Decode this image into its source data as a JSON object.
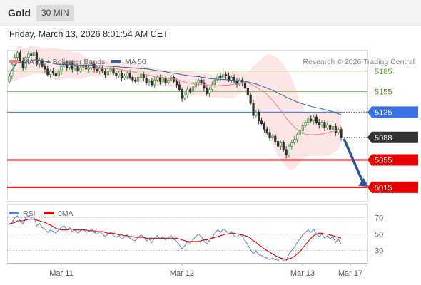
{
  "header": {
    "symbol": "Gold",
    "timeframe": "30 MIN"
  },
  "timestamp": "Friday, March 13, 2026 8:01:54 AM CET",
  "copyright": "Research © 2026 Trading Central",
  "colors": {
    "up": "#3a8a3a",
    "down": "#2e2e2e",
    "ma20": "#f08080",
    "bb_fill": "#fbdcdc",
    "ma50": "#3b5f9e",
    "pivot": "#3b73e6",
    "support": "#e60000",
    "resistance": "#8cc060",
    "current": "#333333",
    "rsi": "#5b84d6",
    "rsi_ma": "#e60000",
    "arrow": "#2a5698"
  },
  "chart_data": [
    {
      "type": "candlestick",
      "title": "",
      "legend": {
        "position": "top-left",
        "entries": [
          "MA 20 + Bollinger Bands",
          "MA 50"
        ]
      },
      "x_labels": [
        "Mar 11",
        "Mar 12",
        "Mar 13",
        "Mar 17"
      ],
      "ylim": [
        4995,
        5215
      ],
      "levels": [
        {
          "value": 5185,
          "label": "5185",
          "kind": "resistance"
        },
        {
          "value": 5155,
          "label": "5155",
          "kind": "resistance"
        },
        {
          "value": 5125,
          "label": "5125",
          "kind": "pivot"
        },
        {
          "value": 5088,
          "label": "5088",
          "kind": "current"
        },
        {
          "value": 5055,
          "label": "5055",
          "kind": "support"
        },
        {
          "value": 5015,
          "label": "5015",
          "kind": "support"
        }
      ],
      "close": [
        5178,
        5195,
        5205,
        5212,
        5200,
        5190,
        5205,
        5210,
        5208,
        5212,
        5195,
        5200,
        5192,
        5188,
        5180,
        5185,
        5182,
        5178,
        5185,
        5192,
        5198,
        5190,
        5196,
        5188,
        5192,
        5185,
        5190,
        5194,
        5188,
        5190,
        5195,
        5188,
        5185,
        5190,
        5185,
        5180,
        5185,
        5188,
        5182,
        5178,
        5182,
        5175,
        5178,
        5182,
        5176,
        5172,
        5170,
        5176,
        5180,
        5175,
        5168,
        5170,
        5165,
        5172,
        5176,
        5170,
        5175,
        5168,
        5172,
        5176,
        5170,
        5165,
        5158,
        5145,
        5150,
        5158,
        5155,
        5162,
        5168,
        5172,
        5168,
        5160,
        5152,
        5158,
        5165,
        5172,
        5178,
        5175,
        5180,
        5178,
        5172,
        5176,
        5170,
        5166,
        5172,
        5168,
        5160,
        5150,
        5138,
        5120,
        5125,
        5112,
        5108,
        5100,
        5095,
        5088,
        5090,
        5082,
        5075,
        5080,
        5070,
        5062,
        5075,
        5080,
        5085,
        5092,
        5098,
        5105,
        5110,
        5115,
        5112,
        5118,
        5110,
        5106,
        5110,
        5102,
        5106,
        5100,
        5104,
        5095,
        5100,
        5088
      ],
      "open": [
        5170,
        5178,
        5195,
        5205,
        5212,
        5200,
        5190,
        5205,
        5210,
        5208,
        5212,
        5195,
        5200,
        5192,
        5188,
        5180,
        5185,
        5182,
        5178,
        5185,
        5192,
        5198,
        5190,
        5196,
        5188,
        5192,
        5185,
        5190,
        5194,
        5188,
        5190,
        5195,
        5188,
        5185,
        5190,
        5185,
        5180,
        5185,
        5188,
        5182,
        5178,
        5182,
        5175,
        5178,
        5182,
        5176,
        5172,
        5170,
        5176,
        5180,
        5175,
        5168,
        5170,
        5165,
        5172,
        5176,
        5170,
        5175,
        5168,
        5172,
        5176,
        5170,
        5165,
        5158,
        5145,
        5150,
        5158,
        5155,
        5162,
        5168,
        5172,
        5168,
        5160,
        5152,
        5158,
        5165,
        5172,
        5178,
        5175,
        5180,
        5178,
        5172,
        5176,
        5170,
        5166,
        5172,
        5168,
        5160,
        5150,
        5138,
        5120,
        5125,
        5112,
        5108,
        5100,
        5095,
        5088,
        5090,
        5082,
        5075,
        5080,
        5070,
        5062,
        5075,
        5080,
        5085,
        5092,
        5098,
        5105,
        5110,
        5115,
        5112,
        5118,
        5110,
        5106,
        5110,
        5102,
        5106,
        5100,
        5104,
        5095,
        5100
      ],
      "projection": {
        "from": 5088,
        "to": 5015
      }
    },
    {
      "type": "line",
      "title": "",
      "legend": {
        "position": "top-left",
        "entries": [
          "RSI",
          "9MA"
        ]
      },
      "ylim": [
        15,
        85
      ],
      "y_ticks": [
        70,
        50,
        30
      ],
      "rsi": [
        62,
        64,
        70,
        72,
        66,
        62,
        70,
        72,
        70,
        71,
        60,
        63,
        58,
        56,
        52,
        55,
        53,
        51,
        55,
        58,
        60,
        55,
        58,
        53,
        55,
        51,
        54,
        56,
        52,
        53,
        56,
        52,
        50,
        53,
        50,
        47,
        50,
        52,
        48,
        46,
        48,
        44,
        46,
        49,
        45,
        43,
        42,
        46,
        49,
        46,
        42,
        44,
        40,
        45,
        48,
        44,
        47,
        43,
        46,
        48,
        44,
        41,
        37,
        32,
        36,
        41,
        39,
        43,
        47,
        50,
        47,
        42,
        38,
        42,
        46,
        51,
        55,
        52,
        56,
        54,
        50,
        53,
        48,
        46,
        50,
        47,
        42,
        37,
        31,
        26,
        30,
        25,
        24,
        22,
        21,
        19,
        21,
        19,
        18,
        21,
        18,
        17,
        26,
        30,
        34,
        40,
        44,
        49,
        52,
        55,
        52,
        56,
        50,
        47,
        50,
        45,
        48,
        44,
        47,
        40,
        44,
        38
      ],
      "rsi_ma": [
        62,
        63,
        64,
        66,
        66,
        66,
        67,
        68,
        68,
        68,
        67,
        66,
        65,
        64,
        62,
        61,
        59,
        57,
        56,
        55,
        55,
        55,
        56,
        56,
        55,
        55,
        55,
        55,
        55,
        54,
        54,
        54,
        53,
        53,
        53,
        52,
        51,
        51,
        51,
        50,
        49,
        49,
        48,
        48,
        47,
        47,
        46,
        46,
        46,
        46,
        45,
        45,
        45,
        45,
        45,
        45,
        45,
        45,
        45,
        45,
        45,
        45,
        44,
        43,
        42,
        41,
        41,
        41,
        41,
        41,
        42,
        43,
        43,
        44,
        45,
        46,
        47,
        48,
        49,
        50,
        50,
        51,
        51,
        50,
        50,
        49,
        48,
        47,
        45,
        42,
        40,
        37,
        35,
        32,
        30,
        28,
        26,
        24,
        22,
        21,
        20,
        19,
        20,
        21,
        23,
        26,
        29,
        33,
        37,
        41,
        45,
        48,
        50,
        51,
        51,
        50,
        50,
        49,
        48,
        47,
        46,
        45
      ]
    }
  ]
}
